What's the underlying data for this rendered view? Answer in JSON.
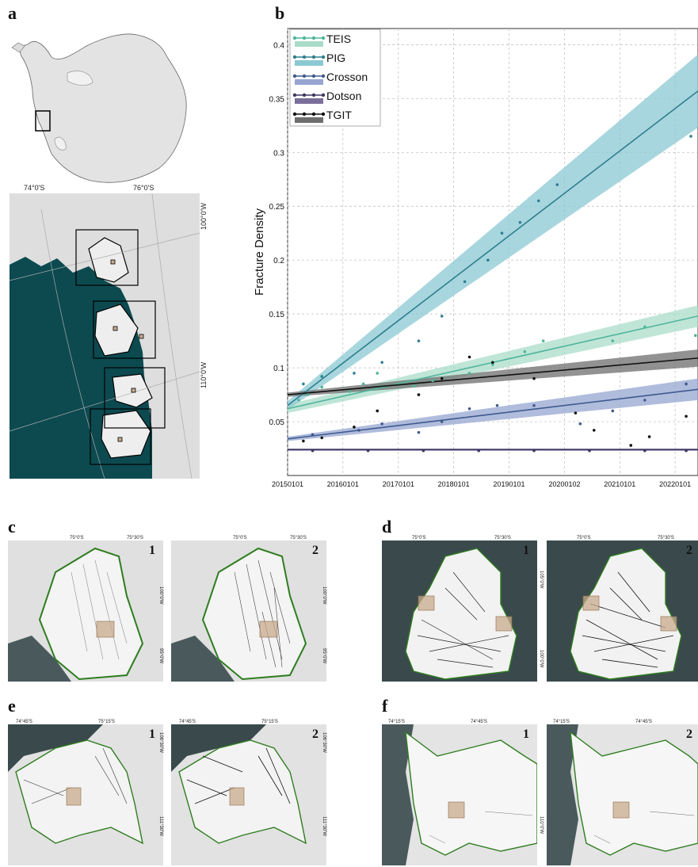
{
  "panels": {
    "a": "a",
    "b": "b",
    "c": "c",
    "d": "d",
    "e": "e",
    "f": "f"
  },
  "panel_a": {
    "lat_labels": [
      "74°0'S",
      "76°0'S"
    ],
    "lon_labels": [
      "100°0'W",
      "110°0'W"
    ]
  },
  "subpanel_numbers": [
    "1",
    "2"
  ],
  "panel_c": {
    "lat_labels": [
      "75°0'S",
      "75°30'S"
    ],
    "lon_labels": [
      "100°0'W",
      "95°0'W"
    ]
  },
  "panel_d": {
    "lat_labels": [
      "75°0'S",
      "75°30'S"
    ],
    "lon_labels": [
      "105°0'W",
      "100°0'W"
    ]
  },
  "panel_e": {
    "lat_labels": [
      "74°45'S",
      "75°15'S"
    ],
    "lon_labels": [
      "106°30'W",
      "111°30'W"
    ]
  },
  "panel_f": {
    "lat_labels": [
      "74°15'S",
      "74°45'S"
    ],
    "lon_labels": [
      "110°0'W"
    ]
  },
  "colors": {
    "ocean": "#0c4a50",
    "ice": "#e4e4e4",
    "grounding_line": "#2e7d1f",
    "teis": "#4fb59a",
    "pig": "#2e7f8e",
    "crosson": "#3f5a8f",
    "dotson": "#3d3660",
    "tgit": "#111111"
  },
  "chart_data": {
    "type": "scatter",
    "ylabel": "Fracture Density",
    "xlabel": "",
    "x_ticks": [
      "20150101",
      "20160101",
      "20170101",
      "20180101",
      "20190101",
      "20200102",
      "20210101",
      "20220101"
    ],
    "xlim": [
      "2015-01-01",
      "2022-06-01"
    ],
    "ylim": [
      0.0,
      0.415
    ],
    "y_ticks": [
      0.05,
      0.1,
      0.15,
      0.2,
      0.25,
      0.3,
      0.35,
      0.4
    ],
    "y_tick_labels": [
      "0.05",
      "0.1",
      "0.15",
      "0.2",
      "0.25",
      "0.3",
      "0.35",
      "0.4"
    ],
    "grid": true,
    "legend_position": "top-left",
    "series": [
      {
        "name": "TEIS",
        "color": "#4fb59a",
        "band_color": "#a9dcc9",
        "trend": {
          "x": [
            "2015-01-01",
            "2022-06-01"
          ],
          "y": [
            0.062,
            0.148
          ],
          "band": [
            0.004,
            0.01
          ]
        },
        "points": [
          [
            "2015-03",
            0.07
          ],
          [
            "2015-05",
            0.075
          ],
          [
            "2015-08",
            0.082
          ],
          [
            "2016-02",
            0.078
          ],
          [
            "2016-05",
            0.085
          ],
          [
            "2016-08",
            0.095
          ],
          [
            "2017-04",
            0.083
          ],
          [
            "2017-08",
            0.088
          ],
          [
            "2018-04",
            0.095
          ],
          [
            "2018-09",
            0.103
          ],
          [
            "2019-04",
            0.115
          ],
          [
            "2019-08",
            0.125
          ],
          [
            "2020-11",
            0.125
          ],
          [
            "2021-06",
            0.138
          ],
          [
            "2022-05",
            0.13
          ]
        ]
      },
      {
        "name": "PIG",
        "color": "#2e7f8e",
        "band_color": "#8bc8d3",
        "trend": {
          "x": [
            "2015-01-01",
            "2022-06-01"
          ],
          "y": [
            0.065,
            0.357
          ],
          "band": [
            0.004,
            0.034
          ]
        },
        "points": [
          [
            "2015-04",
            0.085
          ],
          [
            "2015-08",
            0.092
          ],
          [
            "2016-03",
            0.095
          ],
          [
            "2016-09",
            0.105
          ],
          [
            "2017-05",
            0.125
          ],
          [
            "2017-10",
            0.148
          ],
          [
            "2018-03",
            0.18
          ],
          [
            "2018-08",
            0.2
          ],
          [
            "2018-11",
            0.225
          ],
          [
            "2019-03",
            0.235
          ],
          [
            "2019-07",
            0.255
          ],
          [
            "2019-11",
            0.27
          ],
          [
            "2022-04",
            0.315
          ]
        ]
      },
      {
        "name": "Crosson",
        "color": "#3f5a8f",
        "band_color": "#96a5d0",
        "trend": {
          "x": [
            "2015-01-01",
            "2022-06-01"
          ],
          "y": [
            0.034,
            0.08
          ],
          "band": [
            0.002,
            0.01
          ]
        },
        "points": [
          [
            "2015-06",
            0.038
          ],
          [
            "2016-04",
            0.042
          ],
          [
            "2016-09",
            0.048
          ],
          [
            "2017-05",
            0.04
          ],
          [
            "2017-10",
            0.05
          ],
          [
            "2018-04",
            0.062
          ],
          [
            "2018-10",
            0.065
          ],
          [
            "2019-06",
            0.065
          ],
          [
            "2020-04",
            0.048
          ],
          [
            "2020-11",
            0.06
          ],
          [
            "2021-06",
            0.07
          ],
          [
            "2022-03",
            0.085
          ]
        ]
      },
      {
        "name": "Dotson",
        "color": "#3d3660",
        "band_color": "#7a6f99",
        "trend": {
          "x": [
            "2015-01-01",
            "2022-06-01"
          ],
          "y": [
            0.024,
            0.024
          ],
          "band": [
            0.001,
            0.001
          ]
        },
        "points": [
          [
            "2015-06",
            0.023
          ],
          [
            "2016-06",
            0.023
          ],
          [
            "2017-06",
            0.023
          ],
          [
            "2018-06",
            0.023
          ],
          [
            "2019-06",
            0.023
          ],
          [
            "2020-06",
            0.023
          ],
          [
            "2021-06",
            0.023
          ],
          [
            "2022-03",
            0.023
          ]
        ]
      },
      {
        "name": "TGIT",
        "color": "#111111",
        "band_color": "#6e6e6e",
        "trend": {
          "x": [
            "2015-01-01",
            "2022-06-01"
          ],
          "y": [
            0.075,
            0.109
          ],
          "band": [
            0.002,
            0.008
          ]
        },
        "points": [
          [
            "2015-04",
            0.032
          ],
          [
            "2015-08",
            0.035
          ],
          [
            "2016-03",
            0.045
          ],
          [
            "2016-08",
            0.06
          ],
          [
            "2017-05",
            0.075
          ],
          [
            "2017-10",
            0.09
          ],
          [
            "2018-04",
            0.11
          ],
          [
            "2018-09",
            0.105
          ],
          [
            "2019-06",
            0.09
          ],
          [
            "2020-03",
            0.058
          ],
          [
            "2020-07",
            0.042
          ],
          [
            "2021-03",
            0.028
          ],
          [
            "2021-07",
            0.036
          ],
          [
            "2022-03",
            0.055
          ]
        ]
      }
    ]
  }
}
